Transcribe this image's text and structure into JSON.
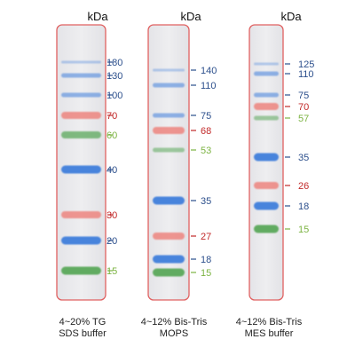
{
  "unit": "kDa",
  "colors": {
    "blue_band": "#3f7fdc",
    "red_band": "#ee7770",
    "green_band": "#5aa85a",
    "blue_text": "#2c4f8c",
    "red_text": "#c22a2a",
    "green_text": "#7cb342",
    "lane_border": "#e06060",
    "lane_fill": "#eeeef0"
  },
  "panels": [
    {
      "caption_line1": "4~20% TG",
      "caption_line2": "SDS buffer",
      "bands": [
        {
          "kda": "180",
          "color": "blue",
          "intensity": "faint"
        },
        {
          "kda": "130",
          "color": "blue",
          "intensity": "light"
        },
        {
          "kda": "100",
          "color": "blue",
          "intensity": "light"
        },
        {
          "kda": "70",
          "color": "red",
          "intensity": "medium"
        },
        {
          "kda": "60",
          "color": "green",
          "intensity": "medium"
        },
        {
          "kda": "40",
          "color": "blue",
          "intensity": "strong"
        },
        {
          "kda": "30",
          "color": "red",
          "intensity": "medium"
        },
        {
          "kda": "20",
          "color": "blue",
          "intensity": "strong"
        },
        {
          "kda": "15",
          "color": "green",
          "intensity": "strong"
        }
      ]
    },
    {
      "caption_line1": "4~12% Bis-Tris",
      "caption_line2": "MOPS",
      "bands": [
        {
          "kda": "140",
          "color": "blue",
          "intensity": "faint"
        },
        {
          "kda": "110",
          "color": "blue",
          "intensity": "light"
        },
        {
          "kda": "75",
          "color": "blue",
          "intensity": "light"
        },
        {
          "kda": "68",
          "color": "red",
          "intensity": "medium"
        },
        {
          "kda": "53",
          "color": "green",
          "intensity": "light"
        },
        {
          "kda": "35",
          "color": "blue",
          "intensity": "strong"
        },
        {
          "kda": "27",
          "color": "red",
          "intensity": "medium"
        },
        {
          "kda": "18",
          "color": "blue",
          "intensity": "strong"
        },
        {
          "kda": "15",
          "color": "green",
          "intensity": "strong"
        }
      ]
    },
    {
      "caption_line1": "4~12% Bis-Tris",
      "caption_line2": "MES buffer",
      "bands": [
        {
          "kda": "125",
          "color": "blue",
          "intensity": "faint"
        },
        {
          "kda": "110",
          "color": "blue",
          "intensity": "light"
        },
        {
          "kda": "75",
          "color": "blue",
          "intensity": "light"
        },
        {
          "kda": "70",
          "color": "red",
          "intensity": "medium"
        },
        {
          "kda": "57",
          "color": "green",
          "intensity": "light"
        },
        {
          "kda": "35",
          "color": "blue",
          "intensity": "strong"
        },
        {
          "kda": "26",
          "color": "red",
          "intensity": "medium"
        },
        {
          "kda": "18",
          "color": "blue",
          "intensity": "strong"
        },
        {
          "kda": "15",
          "color": "green",
          "intensity": "strong"
        }
      ]
    }
  ]
}
